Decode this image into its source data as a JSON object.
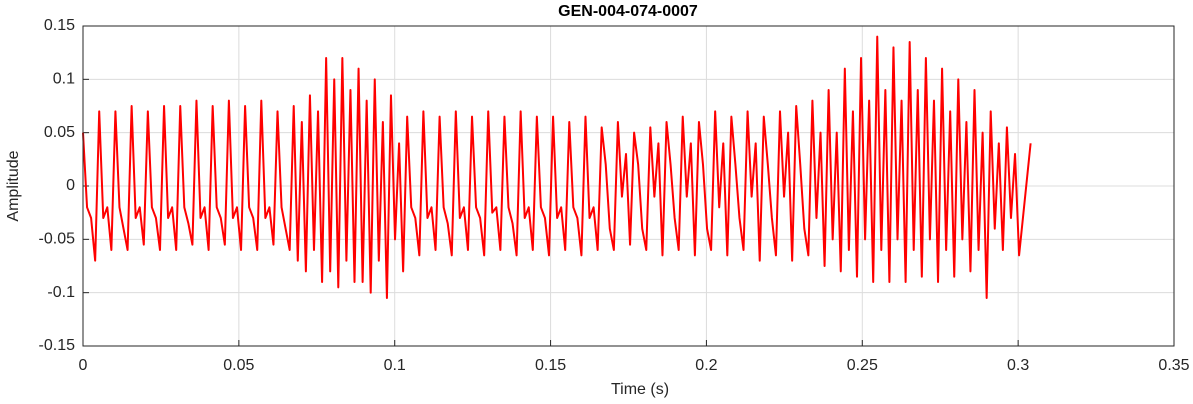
{
  "chart_data": {
    "type": "line",
    "title": "GEN-004-074-0007",
    "x_label": "Time (s)",
    "y_label": "Amplitude",
    "color": "#ff0000",
    "grid": true,
    "xlim": [
      0,
      0.35
    ],
    "xticks": [
      0,
      0.05,
      0.1,
      0.15,
      0.2,
      0.25,
      0.3,
      0.35
    ],
    "ylim": [
      -0.15,
      0.15
    ],
    "yticks": [
      -0.15,
      -0.1,
      -0.05,
      0,
      0.05,
      0.1,
      0.15
    ],
    "x": [
      0,
      0.0013,
      0.0026,
      0.0039,
      0.0052,
      0.0065,
      0.0078,
      0.0091,
      0.0104,
      0.0117,
      0.013,
      0.0143,
      0.0156,
      0.0169,
      0.0182,
      0.0195,
      0.0208,
      0.0221,
      0.0234,
      0.0247,
      0.026,
      0.0273,
      0.0286,
      0.0299,
      0.0312,
      0.0325,
      0.0338,
      0.0351,
      0.0364,
      0.0377,
      0.039,
      0.0403,
      0.0416,
      0.0429,
      0.0442,
      0.0455,
      0.0468,
      0.0481,
      0.0494,
      0.0507,
      0.052,
      0.0533,
      0.0546,
      0.0559,
      0.0572,
      0.0585,
      0.0598,
      0.0611,
      0.0624,
      0.0637,
      0.065,
      0.0663,
      0.0676,
      0.0689,
      0.0702,
      0.0715,
      0.0728,
      0.0741,
      0.0754,
      0.0767,
      0.078,
      0.0793,
      0.0806,
      0.0819,
      0.0832,
      0.0845,
      0.0858,
      0.0871,
      0.0884,
      0.0897,
      0.091,
      0.0923,
      0.0936,
      0.0949,
      0.0962,
      0.0975,
      0.0988,
      0.1001,
      0.1014,
      0.1027,
      0.104,
      0.1053,
      0.1066,
      0.1079,
      0.1092,
      0.1105,
      0.1118,
      0.1131,
      0.1144,
      0.1157,
      0.117,
      0.1183,
      0.1196,
      0.1209,
      0.1222,
      0.1235,
      0.1248,
      0.1261,
      0.1274,
      0.1287,
      0.13,
      0.1313,
      0.1326,
      0.1339,
      0.1352,
      0.1365,
      0.1378,
      0.1391,
      0.1404,
      0.1417,
      0.143,
      0.1443,
      0.1456,
      0.1469,
      0.1482,
      0.1495,
      0.1508,
      0.1521,
      0.1534,
      0.1547,
      0.156,
      0.1573,
      0.1586,
      0.1599,
      0.1612,
      0.1625,
      0.1638,
      0.1651,
      0.1664,
      0.1677,
      0.169,
      0.1703,
      0.1716,
      0.1729,
      0.1742,
      0.1755,
      0.1768,
      0.1781,
      0.1794,
      0.1807,
      0.182,
      0.1833,
      0.1846,
      0.1859,
      0.1872,
      0.1885,
      0.1898,
      0.1911,
      0.1924,
      0.1937,
      0.195,
      0.1963,
      0.1976,
      0.1989,
      0.2002,
      0.2015,
      0.2028,
      0.2041,
      0.2054,
      0.2067,
      0.208,
      0.2093,
      0.2106,
      0.2119,
      0.2132,
      0.2145,
      0.2158,
      0.2171,
      0.2184,
      0.2197,
      0.221,
      0.2223,
      0.2236,
      0.2249,
      0.2262,
      0.2275,
      0.2288,
      0.2301,
      0.2314,
      0.2327,
      0.234,
      0.2353,
      0.2366,
      0.2379,
      0.2392,
      0.2405,
      0.2418,
      0.2431,
      0.2444,
      0.2457,
      0.247,
      0.2483,
      0.2496,
      0.2509,
      0.2522,
      0.2535,
      0.2548,
      0.2561,
      0.2574,
      0.2587,
      0.26,
      0.2613,
      0.2626,
      0.2639,
      0.2652,
      0.2665,
      0.2678,
      0.2691,
      0.2704,
      0.2717,
      0.273,
      0.2743,
      0.2756,
      0.2769,
      0.2782,
      0.2795,
      0.2808,
      0.2821,
      0.2834,
      0.2847,
      0.286,
      0.2873,
      0.2886,
      0.2899,
      0.2912,
      0.2925,
      0.2938,
      0.2951,
      0.2964,
      0.2977,
      0.299,
      0.3003,
      0.304
    ],
    "values": [
      0.05,
      -0.02,
      -0.03,
      -0.07,
      0.07,
      -0.03,
      -0.02,
      -0.06,
      0.07,
      -0.02,
      -0.04,
      -0.06,
      0.075,
      -0.03,
      -0.02,
      -0.055,
      0.07,
      -0.02,
      -0.03,
      -0.06,
      0.075,
      -0.03,
      -0.02,
      -0.06,
      0.075,
      -0.02,
      -0.035,
      -0.055,
      0.08,
      -0.03,
      -0.02,
      -0.06,
      0.075,
      -0.02,
      -0.03,
      -0.055,
      0.08,
      -0.03,
      -0.02,
      -0.06,
      0.075,
      -0.02,
      -0.03,
      -0.06,
      0.08,
      -0.03,
      -0.02,
      -0.055,
      0.07,
      -0.02,
      -0.04,
      -0.06,
      0.075,
      -0.07,
      0.06,
      -0.08,
      0.085,
      -0.06,
      0.07,
      -0.09,
      0.12,
      -0.08,
      0.1,
      -0.095,
      0.12,
      -0.07,
      0.09,
      -0.09,
      0.11,
      -0.09,
      0.08,
      -0.1,
      0.1,
      -0.07,
      0.06,
      -0.105,
      0.085,
      -0.05,
      0.04,
      -0.08,
      0.065,
      -0.02,
      -0.03,
      -0.065,
      0.07,
      -0.03,
      -0.02,
      -0.06,
      0.065,
      -0.02,
      -0.035,
      -0.065,
      0.07,
      -0.03,
      -0.02,
      -0.06,
      0.065,
      -0.02,
      -0.03,
      -0.065,
      0.07,
      -0.025,
      -0.02,
      -0.06,
      0.065,
      -0.02,
      -0.035,
      -0.065,
      0.07,
      -0.03,
      -0.02,
      -0.06,
      0.065,
      -0.02,
      -0.03,
      -0.065,
      0.065,
      -0.03,
      -0.02,
      -0.06,
      0.06,
      -0.02,
      -0.03,
      -0.065,
      0.065,
      -0.03,
      -0.02,
      -0.06,
      0.055,
      0.02,
      -0.04,
      -0.06,
      0.06,
      -0.01,
      0.03,
      -0.055,
      0.05,
      0.02,
      -0.04,
      -0.06,
      0.055,
      -0.01,
      0.04,
      -0.065,
      0.06,
      0.02,
      -0.03,
      -0.06,
      0.065,
      -0.01,
      0.04,
      -0.065,
      0.06,
      0.02,
      -0.04,
      -0.06,
      0.07,
      -0.02,
      0.04,
      -0.065,
      0.065,
      0.02,
      -0.03,
      -0.06,
      0.07,
      -0.01,
      0.04,
      -0.07,
      0.065,
      0.02,
      -0.03,
      -0.065,
      0.07,
      -0.01,
      0.05,
      -0.07,
      0.075,
      0.02,
      -0.04,
      -0.065,
      0.08,
      -0.03,
      0.05,
      -0.075,
      0.09,
      -0.05,
      0.05,
      -0.08,
      0.11,
      -0.06,
      0.07,
      -0.085,
      0.12,
      -0.05,
      0.08,
      -0.09,
      0.14,
      -0.06,
      0.09,
      -0.09,
      0.13,
      -0.05,
      0.08,
      -0.09,
      0.135,
      -0.06,
      0.09,
      -0.085,
      0.12,
      -0.05,
      0.08,
      -0.09,
      0.11,
      -0.06,
      0.07,
      -0.085,
      0.1,
      -0.05,
      0.06,
      -0.08,
      0.09,
      -0.06,
      0.05,
      -0.105,
      0.07,
      -0.04,
      0.04,
      -0.06,
      0.055,
      -0.03,
      0.03,
      -0.065,
      0.04
    ]
  }
}
